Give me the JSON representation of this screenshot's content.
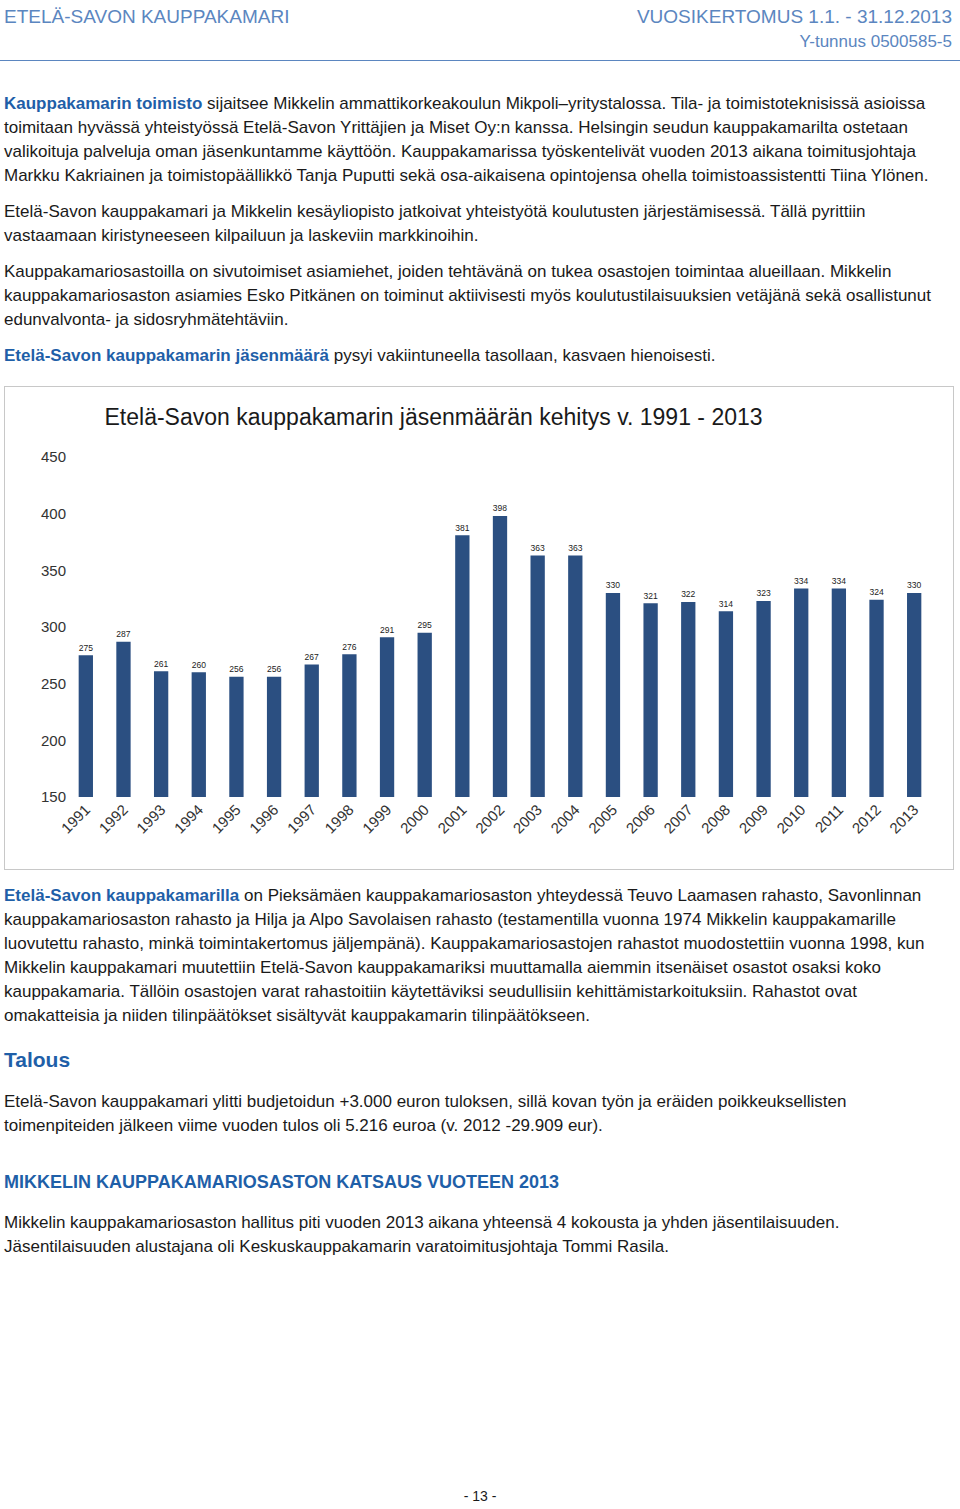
{
  "header": {
    "left": "ETELÄ-SAVON KAUPPAKAMARI",
    "right": "VUOSIKERTOMUS 1.1. - 31.12.2013",
    "id": "Y-tunnus 0500585-5"
  },
  "before_chart": [
    [
      {
        "text": "Kauppakamarin toimisto",
        "highlight": true
      },
      {
        "text": " sijaitsee Mikkelin ammattikorkeakoulun Mikpoli–yritystalossa. Tila- ja toimistoteknisissä asioissa toimitaan hyvässä yhteistyössä Etelä-Savon Yrittäjien ja Miset Oy:n kanssa. Helsingin seudun kauppakamarilta ostetaan valikoituja palveluja oman jäsenkuntamme käyttöön. Kauppakamarissa työskentelivät vuoden 2013 aikana toimitusjohtaja Markku Kakriainen ja toimistopäällikkö Tanja Puputti sekä osa-aikaisena opintojensa ohella toimistoassistentti Tiina Ylönen."
      }
    ],
    [
      {
        "text": "Etelä-Savon kauppakamari ja Mikkelin kesäyliopisto jatkoivat yhteistyötä koulutusten järjestämisessä. Tällä pyrittiin vastaamaan kiristyneeseen kilpailuun ja laskeviin markkinoihin."
      }
    ],
    [
      {
        "text": "Kauppakamariosastoilla on sivutoimiset asiamiehet, joiden tehtävänä on tukea osastojen toimintaa alueillaan. Mikkelin kauppakamariosaston asiamies Esko Pitkänen on toiminut aktiivisesti myös koulutustilaisuuksien vetäjänä sekä osallistunut edunvalvonta- ja sidosryhmätehtäviin."
      }
    ],
    [
      {
        "text": "Etelä-Savon kauppakamarin jäsenmäärä",
        "highlight": true
      },
      {
        "text": " pysyi vakiintuneella tasollaan, kasvaen hienoisesti."
      }
    ]
  ],
  "chart_data": {
    "type": "bar",
    "title": "Etelä-Savon kauppakamarin jäsenmäärän kehitys v. 1991 - 2013",
    "categories": [
      "1991",
      "1992",
      "1993",
      "1994",
      "1995",
      "1996",
      "1997",
      "1998",
      "1999",
      "2000",
      "2001",
      "2002",
      "2003",
      "2004",
      "2005",
      "2006",
      "2007",
      "2008",
      "2009",
      "2010",
      "2011",
      "2012",
      "2013"
    ],
    "values": [
      275,
      287,
      261,
      260,
      256,
      256,
      267,
      276,
      291,
      295,
      381,
      398,
      363,
      363,
      330,
      321,
      322,
      314,
      323,
      334,
      334,
      324,
      330
    ],
    "color": "#2b4f81",
    "ylim": [
      150,
      450
    ],
    "yticks": [
      150,
      200,
      250,
      300,
      350,
      400,
      450
    ],
    "grid": false,
    "data_labels": true
  },
  "after_chart": [
    [
      {
        "text": "Etelä-Savon kauppakamarilla",
        "highlight": true
      },
      {
        "text": " on Pieksämäen kauppakamariosaston yhteydessä Teuvo Laamasen rahasto, Savonlinnan kauppakamariosaston rahasto ja Hilja ja Alpo Savolaisen rahasto (testamentilla vuonna 1974 Mikkelin kauppakamarille luovutettu rahasto, minkä toimintakertomus jäljempänä). Kauppakamariosastojen rahastot muodostettiin vuonna 1998, kun Mikkelin kauppakamari muutettiin Etelä-Savon kauppakamariksi muuttamalla aiemmin itsenäiset osastot osaksi koko kauppakamaria. Tällöin osastojen varat rahastoitiin käytettäviksi seudullisiin kehittämistarkoituksiin. Rahastot ovat omakatteisia ja niiden tilinpäätökset sisältyvät kauppakamarin tilinpäätökseen."
      }
    ]
  ],
  "section1": {
    "heading": "Talous",
    "text": "Etelä-Savon kauppakamari ylitti budjetoidun +3.000 euron tuloksen, sillä kovan työn ja eräiden poikkeuksellisten toimenpiteiden jälkeen viime vuoden tulos oli 5.216 euroa (v. 2012 -29.909 eur)."
  },
  "section2": {
    "heading": "MIKKELIN KAUPPAKAMARIOSASTON KATSAUS VUOTEEN 2013",
    "text": "Mikkelin kauppakamariosaston hallitus piti vuoden 2013 aikana yhteensä 4 kokousta ja yhden jäsentilaisuuden. Jäsentilaisuuden alustajana oli Keskuskauppakamarin varatoimitusjohtaja Tommi Rasila."
  },
  "page_number": "- 13 -"
}
